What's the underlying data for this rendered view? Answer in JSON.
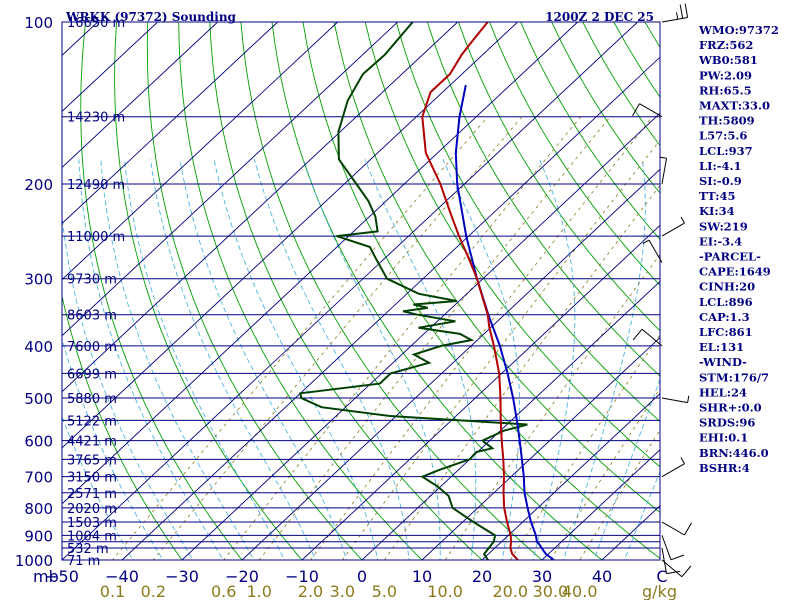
{
  "header": {
    "station": "WRKK (97372) Sounding",
    "time": "1200Z  2 DEC 25"
  },
  "indices": [
    "WMO:97372",
    "FRZ:562",
    "WB0:581",
    "PW:2.09",
    "RH:65.5",
    "MAXT:33.0",
    "TH:5809",
    "L57:5.6",
    "LCL:937",
    "LI:-4.1",
    "SI:-0.9",
    "TT:45",
    "KI:34",
    "SW:219",
    "EI:-3.4",
    "-PARCEL-",
    "CAPE:1649",
    "CINH:20",
    "LCL:896",
    "CAP:1.3",
    "LFC:861",
    "EL:131",
    "-WIND-",
    "STM:176/7",
    "HEL:24",
    "SHR+:0.0",
    "SRDS:96",
    "EHI:0.1",
    "BRN:446.0",
    "BSHR:4"
  ],
  "colors": {
    "isobar": "#000080",
    "isotherm": "#000080",
    "dry_adiabat": "#00a000",
    "moist_adiabat": "#50b4e0",
    "mixing_ratio": "#8b7a1e",
    "temperature": "#b00000",
    "dewpoint": "#004000",
    "parcel": "#0000c0"
  },
  "chart_data": {
    "type": "skew-t",
    "ylabel": "mb",
    "ylim": [
      1000,
      100
    ],
    "xlim": [
      -50,
      50
    ],
    "pressure_levels": [
      100,
      150,
      200,
      250,
      300,
      350,
      400,
      450,
      500,
      550,
      600,
      650,
      700,
      750,
      800,
      850,
      900,
      925,
      950,
      1000
    ],
    "pressure_tick_labels": [
      {
        "p": 100,
        "label": "100"
      },
      {
        "p": 200,
        "label": "200"
      },
      {
        "p": 300,
        "label": "300"
      },
      {
        "p": 400,
        "label": "400"
      },
      {
        "p": 500,
        "label": "500"
      },
      {
        "p": 600,
        "label": "600"
      },
      {
        "p": 700,
        "label": "700"
      },
      {
        "p": 800,
        "label": "800"
      },
      {
        "p": 900,
        "label": "900"
      },
      {
        "p": 1000,
        "label": "1000"
      }
    ],
    "height_labels": [
      {
        "p": 100,
        "label": "16650 m"
      },
      {
        "p": 150,
        "label": "14230 m"
      },
      {
        "p": 200,
        "label": "12490 m"
      },
      {
        "p": 250,
        "label": "11000 m"
      },
      {
        "p": 300,
        "label": "9730 m"
      },
      {
        "p": 350,
        "label": "8603 m"
      },
      {
        "p": 400,
        "label": "7600 m"
      },
      {
        "p": 450,
        "label": "6699 m"
      },
      {
        "p": 500,
        "label": "5880 m"
      },
      {
        "p": 550,
        "label": "5122 m"
      },
      {
        "p": 600,
        "label": "4421 m"
      },
      {
        "p": 650,
        "label": "3765 m"
      },
      {
        "p": 700,
        "label": "3150 m"
      },
      {
        "p": 750,
        "label": "2571 m"
      },
      {
        "p": 800,
        "label": "2020 m"
      },
      {
        "p": 850,
        "label": "1503 m"
      },
      {
        "p": 900,
        "label": "1004 m"
      },
      {
        "p": 950,
        "label": "532 m"
      },
      {
        "p": 1000,
        "label": "71 m"
      }
    ],
    "x_tick_labels": [
      {
        "t": -50,
        "label": "−50"
      },
      {
        "t": -40,
        "label": "−40"
      },
      {
        "t": -30,
        "label": "−30"
      },
      {
        "t": -20,
        "label": "−20"
      },
      {
        "t": -10,
        "label": "−10"
      },
      {
        "t": 0,
        "label": "0"
      },
      {
        "t": 10,
        "label": "10"
      },
      {
        "t": 20,
        "label": "20"
      },
      {
        "t": 30,
        "label": "30"
      },
      {
        "t": 40,
        "label": "40"
      },
      {
        "t": 50,
        "label": "C"
      }
    ],
    "mixing_ratio_labels": [
      {
        "w": 0.1,
        "label": "0.1"
      },
      {
        "w": 0.2,
        "label": "0.2"
      },
      {
        "w": 0.6,
        "label": "0.6"
      },
      {
        "w": 1.0,
        "label": "1.0"
      },
      {
        "w": 2.0,
        "label": "2.0"
      },
      {
        "w": 3.0,
        "label": "3.0"
      },
      {
        "w": 5.0,
        "label": "5.0"
      },
      {
        "w": 10.0,
        "label": "10.0"
      },
      {
        "w": 20.0,
        "label": "20.0"
      },
      {
        "w": 30.0,
        "label": "30.0"
      },
      {
        "w": 40.0,
        "label": "40.0"
      }
    ],
    "mixing_ratio_unit": "g/kg",
    "temperature_profile": [
      [
        1000,
        26
      ],
      [
        975,
        24
      ],
      [
        950,
        22.6
      ],
      [
        925,
        21.6
      ],
      [
        900,
        20.4
      ],
      [
        850,
        17.4
      ],
      [
        800,
        14.4
      ],
      [
        750,
        11.6
      ],
      [
        700,
        8.8
      ],
      [
        650,
        5.6
      ],
      [
        600,
        2.0
      ],
      [
        550,
        -1.8
      ],
      [
        500,
        -5.8
      ],
      [
        450,
        -10.4
      ],
      [
        400,
        -16.2
      ],
      [
        370,
        -20.2
      ],
      [
        350,
        -22.8
      ],
      [
        300,
        -31
      ],
      [
        275,
        -36
      ],
      [
        250,
        -41.6
      ],
      [
        225,
        -47.5
      ],
      [
        200,
        -54
      ],
      [
        175,
        -62
      ],
      [
        150,
        -69
      ],
      [
        135,
        -72
      ],
      [
        125,
        -72
      ],
      [
        115,
        -73.5
      ],
      [
        110,
        -74
      ],
      [
        100,
        -75
      ]
    ],
    "dewpoint_profile": [
      [
        1000,
        21
      ],
      [
        975,
        19.3
      ],
      [
        950,
        19
      ],
      [
        925,
        18.7
      ],
      [
        900,
        17.8
      ],
      [
        850,
        11.8
      ],
      [
        800,
        5.8
      ],
      [
        760,
        3.0
      ],
      [
        730,
        -0.5
      ],
      [
        700,
        -4.8
      ],
      [
        680,
        -3.2
      ],
      [
        650,
        0.0
      ],
      [
        630,
        -0.2
      ],
      [
        620,
        1.8
      ],
      [
        600,
        -1.2
      ],
      [
        575,
        0.6
      ],
      [
        560,
        3.4
      ],
      [
        540,
        -21
      ],
      [
        520,
        -34
      ],
      [
        500,
        -39
      ],
      [
        490,
        -40
      ],
      [
        470,
        -28.5
      ],
      [
        450,
        -28.5
      ],
      [
        430,
        -24
      ],
      [
        415,
        -28
      ],
      [
        400,
        -25
      ],
      [
        390,
        -21
      ],
      [
        380,
        -24
      ],
      [
        370,
        -32
      ],
      [
        360,
        -27
      ],
      [
        350,
        -34.5
      ],
      [
        345,
        -37.5
      ],
      [
        340,
        -34
      ],
      [
        335,
        -37
      ],
      [
        330,
        -30.4
      ],
      [
        320,
        -38
      ],
      [
        300,
        -46
      ],
      [
        275,
        -51.5
      ],
      [
        262,
        -54.5
      ],
      [
        250,
        -62
      ],
      [
        245,
        -56
      ],
      [
        230,
        -59
      ],
      [
        215,
        -63
      ],
      [
        200,
        -68
      ],
      [
        180,
        -75.3
      ],
      [
        160,
        -80.3
      ],
      [
        140,
        -84.3
      ],
      [
        125,
        -86.5
      ],
      [
        115,
        -86.3
      ],
      [
        100,
        -87.5
      ]
    ],
    "parcel_profile": [
      [
        1000,
        32
      ],
      [
        975,
        29.6
      ],
      [
        950,
        27.8
      ],
      [
        937,
        26.9
      ],
      [
        925,
        25.9
      ],
      [
        900,
        24.6
      ],
      [
        850,
        21.4
      ],
      [
        800,
        18.3
      ],
      [
        750,
        15.1
      ],
      [
        700,
        12.1
      ],
      [
        650,
        8.7
      ],
      [
        600,
        5.0
      ],
      [
        550,
        0.9
      ],
      [
        500,
        -3.7
      ],
      [
        450,
        -9.0
      ],
      [
        400,
        -15.2
      ],
      [
        350,
        -22.7
      ],
      [
        300,
        -31.0
      ],
      [
        250,
        -40.4
      ],
      [
        200,
        -51.2
      ],
      [
        175,
        -57.0
      ],
      [
        150,
        -62.8
      ],
      [
        131,
        -67.4
      ]
    ],
    "wind_barbs": [
      {
        "p": 100,
        "dir": 80,
        "spd": 25
      },
      {
        "p": 150,
        "dir": 300,
        "spd": 10
      },
      {
        "p": 200,
        "dir": 10,
        "spd": 5
      },
      {
        "p": 250,
        "dir": 60,
        "spd": 5
      },
      {
        "p": 280,
        "dir": 330,
        "spd": 5
      },
      {
        "p": 400,
        "dir": 310,
        "spd": 10
      },
      {
        "p": 500,
        "dir": 100,
        "spd": 5
      },
      {
        "p": 700,
        "dir": 60,
        "spd": 5
      },
      {
        "p": 850,
        "dir": 120,
        "spd": 10
      },
      {
        "p": 900,
        "dir": 160,
        "spd": 10
      },
      {
        "p": 950,
        "dir": 170,
        "spd": 10
      },
      {
        "p": 1000,
        "dir": 130,
        "spd": 10
      }
    ]
  }
}
